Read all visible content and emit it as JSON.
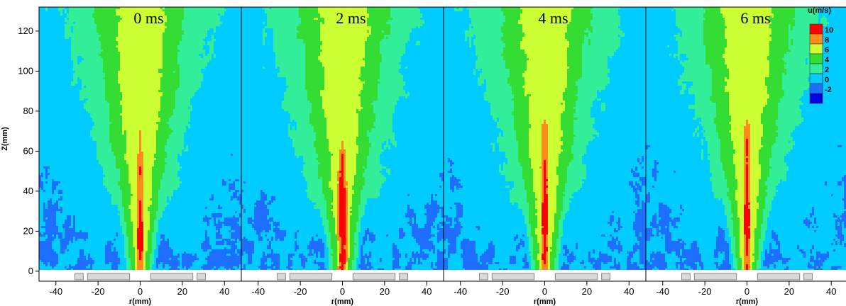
{
  "chart_data": {
    "type": "heatmap",
    "xlabel": "r(mm)",
    "ylabel": "Z(mm)",
    "xlim": [
      -48,
      48
    ],
    "ylim": [
      -5,
      132
    ],
    "x_ticks": [
      -40,
      -20,
      0,
      20,
      40
    ],
    "y_ticks": [
      0,
      20,
      40,
      60,
      80,
      100,
      120
    ],
    "legend": {
      "title": "u(m/s)",
      "levels": [
        10,
        8,
        6,
        4,
        2,
        0,
        -2
      ],
      "colors": [
        "#ff0000",
        "#ff8c1a",
        "#ccff33",
        "#33dd33",
        "#33ee99",
        "#00ccff",
        "#1e6eff",
        "#0000e0"
      ],
      "position": "top-right"
    },
    "grid": false,
    "panels": [
      {
        "title": "0 ms",
        "centerline": [
          [
            0,
            9
          ],
          [
            10,
            10.5
          ],
          [
            20,
            11
          ],
          [
            30,
            10.5
          ],
          [
            40,
            9.5
          ],
          [
            50,
            10
          ],
          [
            60,
            9
          ],
          [
            70,
            8.5
          ],
          [
            80,
            6.5
          ],
          [
            90,
            7
          ],
          [
            100,
            6
          ],
          [
            110,
            5
          ],
          [
            120,
            4.5
          ],
          [
            130,
            4
          ]
        ],
        "core_width": [
          [
            0,
            2.8
          ],
          [
            10,
            3
          ],
          [
            20,
            3
          ],
          [
            30,
            2.8
          ],
          [
            40,
            2.5
          ],
          [
            50,
            3.5
          ],
          [
            60,
            2.8
          ],
          [
            70,
            2
          ],
          [
            80,
            1.5
          ],
          [
            90,
            3.5
          ],
          [
            100,
            2.5
          ],
          [
            110,
            2
          ],
          [
            120,
            1.5
          ],
          [
            130,
            1.5
          ]
        ]
      },
      {
        "title": "2 ms",
        "centerline": [
          [
            0,
            10
          ],
          [
            10,
            10.5
          ],
          [
            20,
            11
          ],
          [
            30,
            11
          ],
          [
            40,
            11
          ],
          [
            50,
            10.5
          ],
          [
            60,
            9.5
          ],
          [
            70,
            7.5
          ],
          [
            80,
            6.5
          ],
          [
            90,
            6
          ],
          [
            100,
            5.5
          ],
          [
            110,
            5
          ],
          [
            120,
            4.5
          ],
          [
            130,
            4
          ]
        ],
        "core_width": [
          [
            0,
            3.5
          ],
          [
            10,
            3.5
          ],
          [
            20,
            3.5
          ],
          [
            30,
            3.5
          ],
          [
            40,
            3.5
          ],
          [
            50,
            3.5
          ],
          [
            60,
            2.5
          ],
          [
            70,
            2
          ],
          [
            80,
            1.5
          ],
          [
            90,
            2
          ],
          [
            100,
            3
          ],
          [
            110,
            2
          ],
          [
            120,
            1.5
          ],
          [
            130,
            1.5
          ]
        ]
      },
      {
        "title": "4 ms",
        "centerline": [
          [
            0,
            10
          ],
          [
            10,
            11
          ],
          [
            20,
            11
          ],
          [
            30,
            11
          ],
          [
            40,
            10.5
          ],
          [
            50,
            10.5
          ],
          [
            60,
            10
          ],
          [
            70,
            9.5
          ],
          [
            80,
            6.5
          ],
          [
            90,
            6
          ],
          [
            100,
            5
          ],
          [
            110,
            6.5
          ],
          [
            120,
            4.5
          ],
          [
            130,
            4
          ]
        ],
        "core_width": [
          [
            0,
            3
          ],
          [
            10,
            3
          ],
          [
            20,
            3
          ],
          [
            30,
            3
          ],
          [
            40,
            3
          ],
          [
            50,
            3.5
          ],
          [
            60,
            3
          ],
          [
            70,
            3.5
          ],
          [
            80,
            1.5
          ],
          [
            90,
            1.5
          ],
          [
            100,
            1.5
          ],
          [
            110,
            2.5
          ],
          [
            120,
            1.5
          ],
          [
            130,
            1.5
          ]
        ]
      },
      {
        "title": "6 ms",
        "centerline": [
          [
            0,
            10
          ],
          [
            10,
            10.5
          ],
          [
            20,
            11
          ],
          [
            30,
            11
          ],
          [
            40,
            10.5
          ],
          [
            50,
            10.5
          ],
          [
            60,
            10
          ],
          [
            70,
            9.5
          ],
          [
            80,
            7
          ],
          [
            90,
            6
          ],
          [
            100,
            5
          ],
          [
            110,
            4.5
          ],
          [
            120,
            4.5
          ],
          [
            130,
            4
          ]
        ],
        "core_width": [
          [
            0,
            3
          ],
          [
            10,
            3
          ],
          [
            20,
            3
          ],
          [
            30,
            2.8
          ],
          [
            40,
            2.8
          ],
          [
            50,
            2.8
          ],
          [
            60,
            3
          ],
          [
            70,
            3
          ],
          [
            80,
            2
          ],
          [
            90,
            1.5
          ],
          [
            100,
            2.5
          ],
          [
            110,
            2
          ],
          [
            120,
            1.5
          ],
          [
            130,
            1.5
          ]
        ]
      }
    ]
  }
}
